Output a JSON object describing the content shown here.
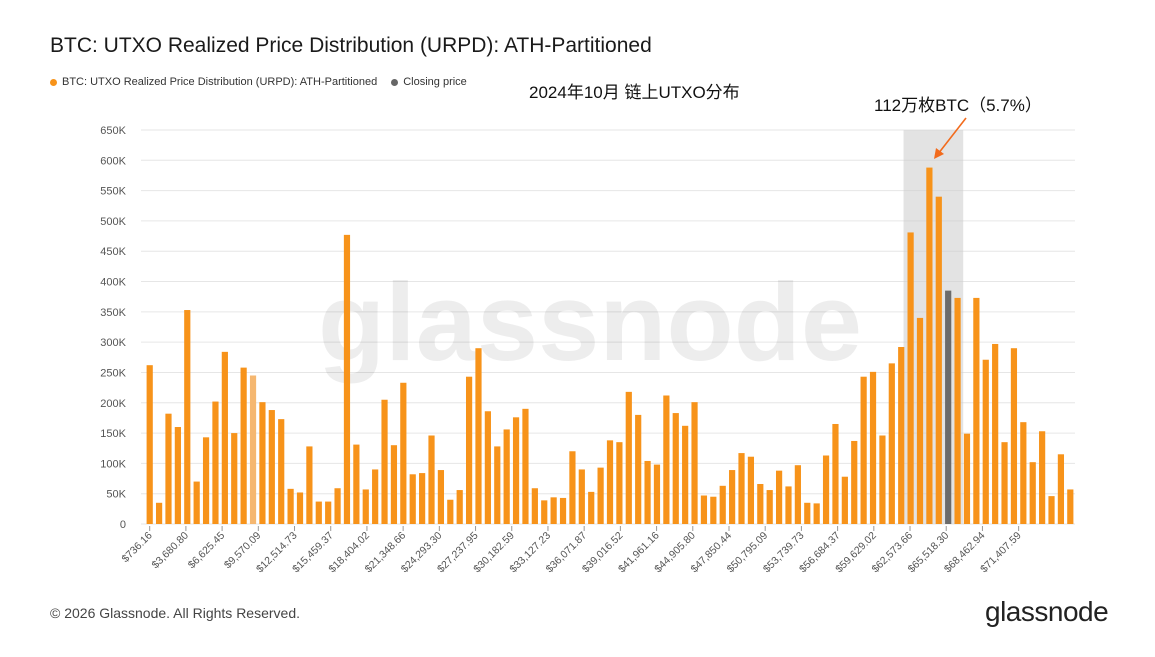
{
  "title": "BTC: UTXO Realized Price Distribution (URPD): ATH-Partitioned",
  "legend": [
    {
      "label": "BTC: UTXO Realized Price Distribution (URPD): ATH-Partitioned",
      "color": "#f7931a"
    },
    {
      "label": "Closing price",
      "color": "#666666"
    }
  ],
  "annotations": {
    "main": "2024年10月 链上UTXO分布",
    "peak": "112万枚BTC（5.7%）"
  },
  "footer": {
    "copyright": "© 2026 Glassnode. All Rights Reserved.",
    "logo": "glassnode"
  },
  "watermark": "glassnode",
  "chart_data": {
    "type": "bar",
    "ylim": [
      0,
      650000
    ],
    "yticks": [
      0,
      50000,
      100000,
      150000,
      200000,
      250000,
      300000,
      350000,
      400000,
      450000,
      500000,
      550000,
      600000,
      650000
    ],
    "ytick_labels": [
      "0",
      "50K",
      "100K",
      "150K",
      "200K",
      "250K",
      "300K",
      "350K",
      "400K",
      "450K",
      "500K",
      "550K",
      "600K",
      "650K"
    ],
    "xtick_labels": [
      "$736.16",
      "$3,680.80",
      "$6,625.45",
      "$9,570.09",
      "$12,514.73",
      "$15,459.37",
      "$18,404.02",
      "$21,348.66",
      "$24,293.30",
      "$27,237.95",
      "$30,182.59",
      "$33,127.23",
      "$36,071.87",
      "$39,016.52",
      "$41,961.16",
      "$44,905.80",
      "$47,850.44",
      "$50,795.09",
      "$53,739.73",
      "$56,684.37",
      "$59,629.02",
      "$62,573.66",
      "$65,518.30",
      "$68,462.94",
      "$71,407.59"
    ],
    "bar_colors": {
      "default": "#f7931a",
      "light": "#f5b770",
      "closing": "#6b6b6b"
    },
    "values": [
      262000,
      35000,
      182000,
      160000,
      353000,
      70000,
      143000,
      202000,
      284000,
      150000,
      258000,
      245000,
      201000,
      188000,
      173000,
      58000,
      52000,
      128000,
      37000,
      37000,
      59000,
      477000,
      131000,
      57000,
      90000,
      205000,
      130000,
      233000,
      82000,
      84000,
      146000,
      89000,
      40000,
      56000,
      243000,
      290000,
      186000,
      128000,
      156000,
      176000,
      190000,
      59000,
      39000,
      44000,
      43000,
      120000,
      90000,
      53000,
      93000,
      138000,
      135000,
      218000,
      180000,
      104000,
      98000,
      212000,
      183000,
      162000,
      201000,
      47000,
      45000,
      63000,
      89000,
      117000,
      111000,
      66000,
      56000,
      88000,
      62000,
      97000,
      35000,
      34000,
      113000,
      165000,
      78000,
      137000,
      243000,
      251000,
      146000,
      265000,
      292000,
      481000,
      340000,
      588000,
      540000,
      385000,
      373000,
      149000,
      373000,
      271000,
      297000,
      135000,
      290000,
      168000,
      102000,
      153000,
      46000,
      115000,
      57000
    ],
    "light_index": 11,
    "closing_index": 85,
    "highlight_range": [
      81,
      86
    ]
  }
}
